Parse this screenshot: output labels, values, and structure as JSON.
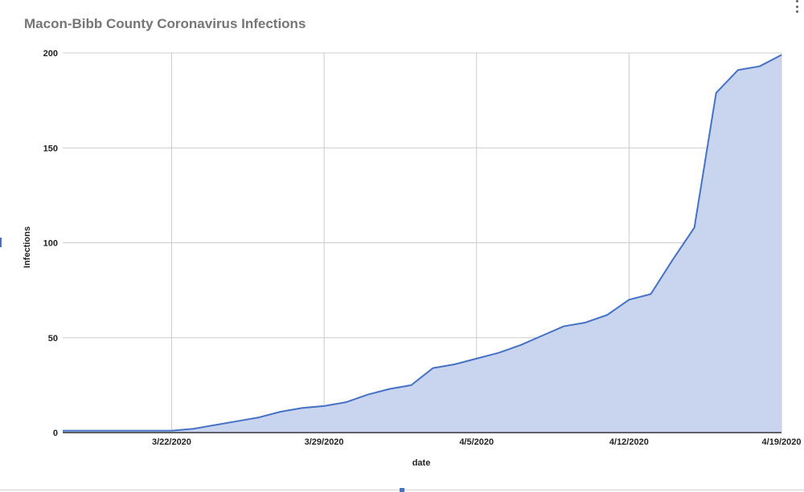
{
  "chart_data": {
    "type": "area",
    "title": "Macon-Bibb County Coronavirus Infections",
    "xlabel": "date",
    "ylabel": "Infections",
    "ylim": [
      0,
      200
    ],
    "yticks": [
      0,
      50,
      100,
      150,
      200
    ],
    "xlim": [
      "3/17/2020",
      "4/19/2020"
    ],
    "xticks": [
      "3/22/2020",
      "3/29/2020",
      "4/5/2020",
      "4/12/2020",
      "4/19/2020"
    ],
    "grid": true,
    "legend": "none",
    "series": [
      {
        "color": "#4472c4",
        "fill": "#c9d4ee",
        "x": [
          "3/17/2020",
          "3/18/2020",
          "3/19/2020",
          "3/20/2020",
          "3/21/2020",
          "3/22/2020",
          "3/23/2020",
          "3/24/2020",
          "3/25/2020",
          "3/26/2020",
          "3/27/2020",
          "3/28/2020",
          "3/29/2020",
          "3/30/2020",
          "3/31/2020",
          "4/1/2020",
          "4/2/2020",
          "4/3/2020",
          "4/4/2020",
          "4/5/2020",
          "4/6/2020",
          "4/7/2020",
          "4/8/2020",
          "4/9/2020",
          "4/10/2020",
          "4/11/2020",
          "4/12/2020",
          "4/13/2020",
          "4/14/2020",
          "4/15/2020",
          "4/16/2020",
          "4/17/2020",
          "4/18/2020",
          "4/19/2020"
        ],
        "values": [
          1,
          1,
          1,
          1,
          1,
          1,
          2,
          4,
          6,
          8,
          11,
          13,
          14,
          16,
          20,
          23,
          25,
          34,
          36,
          39,
          42,
          46,
          51,
          56,
          58,
          62,
          70,
          73,
          91,
          108,
          179,
          191,
          193,
          199
        ]
      }
    ]
  }
}
